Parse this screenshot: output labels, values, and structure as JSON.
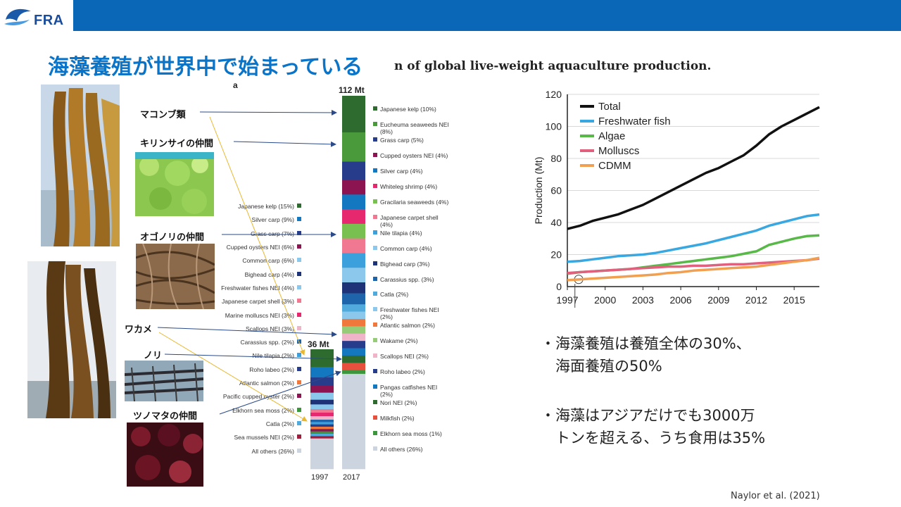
{
  "header": {
    "logo_text": "FRA"
  },
  "title": "海藻養殖が世界中で始まっている",
  "figure_caption": "n of global live-weight aquaculture production.",
  "labels": {
    "makonbu": "マコンブ類",
    "kirinsai": "キリンサイの仲間",
    "ogonori": "オゴノリの仲間",
    "wakame": "ワカメ",
    "nori": "ノリ",
    "tsunomata": "ツノマタの仲間"
  },
  "bar_chart": {
    "panel_letter": "a",
    "top_1997": "36 Mt",
    "top_2017": "112 Mt",
    "years": [
      "1997",
      "2017"
    ],
    "legend_2017": [
      {
        "label": "Japanese kelp (10%)",
        "color": "#2e6b2e"
      },
      {
        "label": "Eucheuma seaweeds NEI (8%)",
        "color": "#4a9a3c"
      },
      {
        "label": "Grass carp (5%)",
        "color": "#283c8c"
      },
      {
        "label": "Cupped oysters NEI (4%)",
        "color": "#8c1450"
      },
      {
        "label": "Silver carp (4%)",
        "color": "#1478c0"
      },
      {
        "label": "Whiteleg shrimp (4%)",
        "color": "#e6286e"
      },
      {
        "label": "Gracilaria seaweeds (4%)",
        "color": "#78c050"
      },
      {
        "label": "Japanese carpet shell (4%)",
        "color": "#f07890"
      },
      {
        "label": "Nile tilapia (4%)",
        "color": "#3ca0dc"
      },
      {
        "label": "Common carp (4%)",
        "color": "#8cc8ec"
      },
      {
        "label": "Bighead carp (3%)",
        "color": "#1e3278"
      },
      {
        "label": "Carassius spp. (3%)",
        "color": "#1e64aa"
      },
      {
        "label": "Catla (2%)",
        "color": "#50aadc"
      },
      {
        "label": "Freshwater fishes NEI (2%)",
        "color": "#8cc8ec"
      },
      {
        "label": "Atlantic salmon (2%)",
        "color": "#f0783c"
      },
      {
        "label": "Wakame (2%)",
        "color": "#96cc78"
      },
      {
        "label": "Scallops NEI (2%)",
        "color": "#f0b4c8"
      },
      {
        "label": "Roho labeo (2%)",
        "color": "#283c8c"
      },
      {
        "label": "Pangas catfishes NEI (2%)",
        "color": "#1478c0"
      },
      {
        "label": "Nori NEI (2%)",
        "color": "#2e6b2e"
      },
      {
        "label": "Milkfish (2%)",
        "color": "#e6503c"
      },
      {
        "label": "Elkhorn sea moss (1%)",
        "color": "#3c963c"
      },
      {
        "label": "All others (26%)",
        "color": "#ccd4e0"
      }
    ],
    "legend_1997": [
      {
        "label": "Japanese kelp (15%)",
        "color": "#2e6b2e"
      },
      {
        "label": "Silver carp (9%)",
        "color": "#1478c0"
      },
      {
        "label": "Grass carp (7%)",
        "color": "#283c8c"
      },
      {
        "label": "Cupped oysters NEI (6%)",
        "color": "#8c1450"
      },
      {
        "label": "Common carp (6%)",
        "color": "#8cc8ec"
      },
      {
        "label": "Bighead carp (4%)",
        "color": "#1e3278"
      },
      {
        "label": "Freshwater fishes NEI (4%)",
        "color": "#8cc8ec"
      },
      {
        "label": "Japanese carpet shell (3%)",
        "color": "#f07890"
      },
      {
        "label": "Marine molluscs NEI (3%)",
        "color": "#e6286e"
      },
      {
        "label": "Scallops NEI (3%)",
        "color": "#f0b4c8"
      },
      {
        "label": "Carassius spp. (2%)",
        "color": "#1e64aa"
      },
      {
        "label": "Nile tilapia (2%)",
        "color": "#3ca0dc"
      },
      {
        "label": "Roho labeo (2%)",
        "color": "#283c8c"
      },
      {
        "label": "Atlantic salmon (2%)",
        "color": "#f0783c"
      },
      {
        "label": "Pacific cupped oyster (2%)",
        "color": "#8c1450"
      },
      {
        "label": "Elkhorn sea moss (2%)",
        "color": "#3c963c"
      },
      {
        "label": "Catla (2%)",
        "color": "#50aadc"
      },
      {
        "label": "Sea mussels NEI (2%)",
        "color": "#a01e3c"
      },
      {
        "label": "All others (26%)",
        "color": "#ccd4e0"
      }
    ]
  },
  "chart_data": {
    "type": "line",
    "x_ticks": [
      "1997",
      "2000",
      "2003",
      "2006",
      "2009",
      "2012",
      "2015"
    ],
    "ylabel": "Production (Mt)",
    "ylim": [
      0,
      120
    ],
    "y_ticks": [
      "0",
      "20",
      "40",
      "60",
      "80",
      "100",
      "120"
    ],
    "grid": true,
    "legend_placement": "top-left",
    "x": [
      1997,
      1998,
      1999,
      2000,
      2001,
      2002,
      2003,
      2004,
      2005,
      2006,
      2007,
      2008,
      2009,
      2010,
      2011,
      2012,
      2013,
      2014,
      2015,
      2016,
      2017
    ],
    "series": [
      {
        "name": "Total",
        "color": "#111111",
        "values": [
          36,
          38,
          41,
          43,
          45,
          48,
          51,
          55,
          59,
          63,
          67,
          71,
          74,
          78,
          82,
          88,
          95,
          100,
          104,
          108,
          112
        ]
      },
      {
        "name": "Freshwater fish",
        "color": "#3aa8e0",
        "values": [
          15.5,
          16,
          17,
          18,
          19,
          19.5,
          20,
          21,
          22.5,
          24,
          25.5,
          27,
          29,
          31,
          33,
          35,
          38,
          40,
          42,
          44,
          45
        ]
      },
      {
        "name": "Algae",
        "color": "#58b848",
        "values": [
          8,
          9,
          9.5,
          10,
          10.5,
          11,
          12,
          13,
          14,
          15,
          16,
          17,
          18,
          19,
          20.5,
          22,
          26,
          28,
          30,
          31.5,
          32
        ]
      },
      {
        "name": "Molluscs",
        "color": "#e0607e",
        "values": [
          8.5,
          9,
          9.5,
          10,
          10.5,
          11,
          11.5,
          12,
          12.5,
          12.5,
          13,
          13,
          13.5,
          14,
          14,
          14.5,
          15,
          15.5,
          16,
          16.5,
          17.5
        ]
      },
      {
        "name": "CDMM",
        "color": "#f0a050",
        "values": [
          4,
          4.5,
          5,
          5.5,
          6,
          6.5,
          7,
          7.5,
          8.5,
          9,
          10,
          10.5,
          11,
          11.5,
          12,
          12.5,
          13.5,
          14.5,
          15.5,
          16.5,
          18
        ]
      }
    ]
  },
  "bullets": [
    {
      "line1": "・海藻養殖は養殖全体の30%、",
      "line2": "　海面養殖の50%"
    },
    {
      "line1": "・海藻はアジアだけでも3000万",
      "line2": "　トンを超える、うち食用は35%"
    }
  ],
  "citation": "Naylor et al.  (2021)"
}
